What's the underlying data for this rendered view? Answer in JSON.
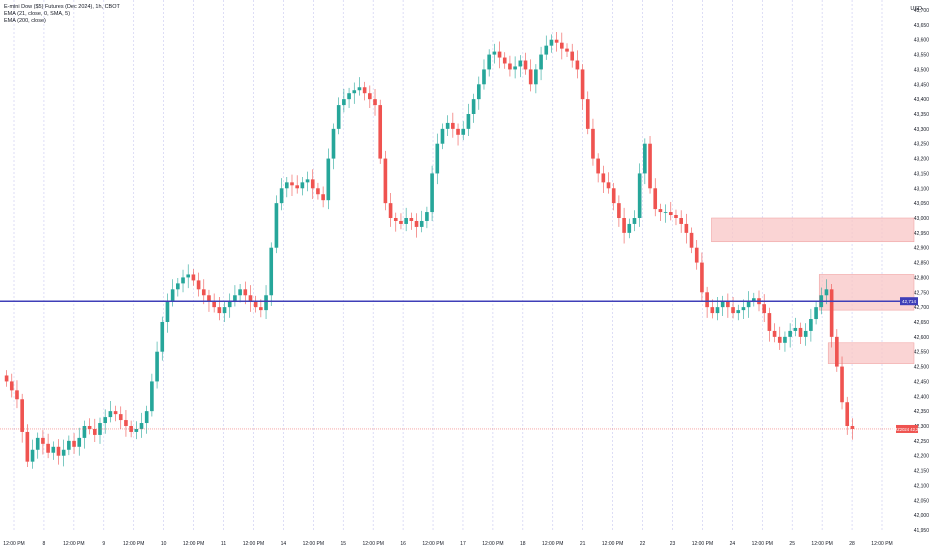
{
  "legend": {
    "symbol": "E-mini Dow ($5) Futures (Dec 2024), 1h, CBOT",
    "ema_line": "EMA (21, close, 0, SMA, 5)",
    "ema200_line": "EMA (200, close)"
  },
  "currency": "USD",
  "colors": {
    "up": "#26a69a",
    "down": "#ef5350",
    "level_line": "#3f3fb8",
    "zone_fill": "#f8c6c6",
    "grid_dash": "#c7c7f0",
    "price_tag": "#ef5350"
  },
  "chart_data": {
    "type": "candlestick",
    "y_ticks": [
      "43,700",
      "43,650",
      "43,600",
      "43,550",
      "43,500",
      "43,450",
      "43,400",
      "43,350",
      "43,300",
      "43,250",
      "43,200",
      "43,150",
      "43,100",
      "43,050",
      "43,000",
      "42,950",
      "42,900",
      "42,850",
      "42,800",
      "42,750",
      "42,700",
      "42,650",
      "42,600",
      "42,550",
      "42,500",
      "42,450",
      "42,400",
      "42,350",
      "42,300",
      "42,250",
      "42,200",
      "42,150",
      "42,100",
      "42,050",
      "42,000",
      "41,950"
    ],
    "ylim": [
      41950,
      43700
    ],
    "x_ticks": [
      "12:00 PM",
      "8",
      "12:00 PM",
      "9",
      "12:00 PM",
      "10",
      "12:00 PM",
      "11",
      "12:00 PM",
      "14",
      "12:00 PM",
      "15",
      "12:00 PM",
      "16",
      "12:00 PM",
      "17",
      "12:00 PM",
      "18",
      "12:00 PM",
      "21",
      "12:00 PM",
      "22",
      "23",
      "12:00 PM",
      "24",
      "12:00 PM",
      "25",
      "12:00 PM",
      "28",
      "12:00 PM"
    ],
    "horizontal_level": {
      "value": 42720,
      "label": "42,714"
    },
    "current_price": {
      "value": 42290,
      "label": "YMZ2024",
      "price": "42,295"
    },
    "zones": [
      {
        "top": 43000,
        "bottom": 42920,
        "start_index": 0.77
      },
      {
        "top": 42810,
        "bottom": 42690,
        "start_index": 0.89
      },
      {
        "top": 42580,
        "bottom": 42510,
        "start_index": 0.9
      }
    ],
    "closes": [
      42450,
      42420,
      42390,
      42280,
      42180,
      42220,
      42260,
      42240,
      42210,
      42230,
      42200,
      42220,
      42250,
      42230,
      42260,
      42300,
      42290,
      42270,
      42310,
      42330,
      42350,
      42340,
      42320,
      42300,
      42280,
      42290,
      42310,
      42350,
      42450,
      42550,
      42650,
      42720,
      42760,
      42780,
      42800,
      42810,
      42790,
      42760,
      42740,
      42720,
      42700,
      42680,
      42700,
      42720,
      42740,
      42760,
      42740,
      42720,
      42700,
      42690,
      42740,
      42900,
      43050,
      43100,
      43120,
      43110,
      43100,
      43120,
      43130,
      43100,
      43080,
      43060,
      43200,
      43300,
      43380,
      43400,
      43420,
      43430,
      43440,
      43420,
      43400,
      43380,
      43200,
      43050,
      43000,
      42990,
      42980,
      43000,
      42990,
      42970,
      42990,
      43020,
      43150,
      43250,
      43300,
      43320,
      43300,
      43280,
      43300,
      43350,
      43400,
      43450,
      43500,
      43550,
      43560,
      43540,
      43520,
      43500,
      43510,
      43530,
      43500,
      43450,
      43500,
      43550,
      43580,
      43600,
      43590,
      43570,
      43560,
      43530,
      43500,
      43400,
      43300,
      43200,
      43150,
      43120,
      43100,
      43050,
      43000,
      42950,
      42980,
      43000,
      43150,
      43250,
      43100,
      43030,
      43020,
      43020,
      43010,
      43000,
      42980,
      42950,
      42900,
      42850,
      42750,
      42700,
      42680,
      42700,
      42720,
      42700,
      42680,
      42690,
      42700,
      42720,
      42730,
      42710,
      42680,
      42620,
      42600,
      42580,
      42600,
      42620,
      42630,
      42600,
      42620,
      42660,
      42700,
      42740,
      42760,
      42600,
      42500,
      42380,
      42300,
      42290
    ]
  }
}
